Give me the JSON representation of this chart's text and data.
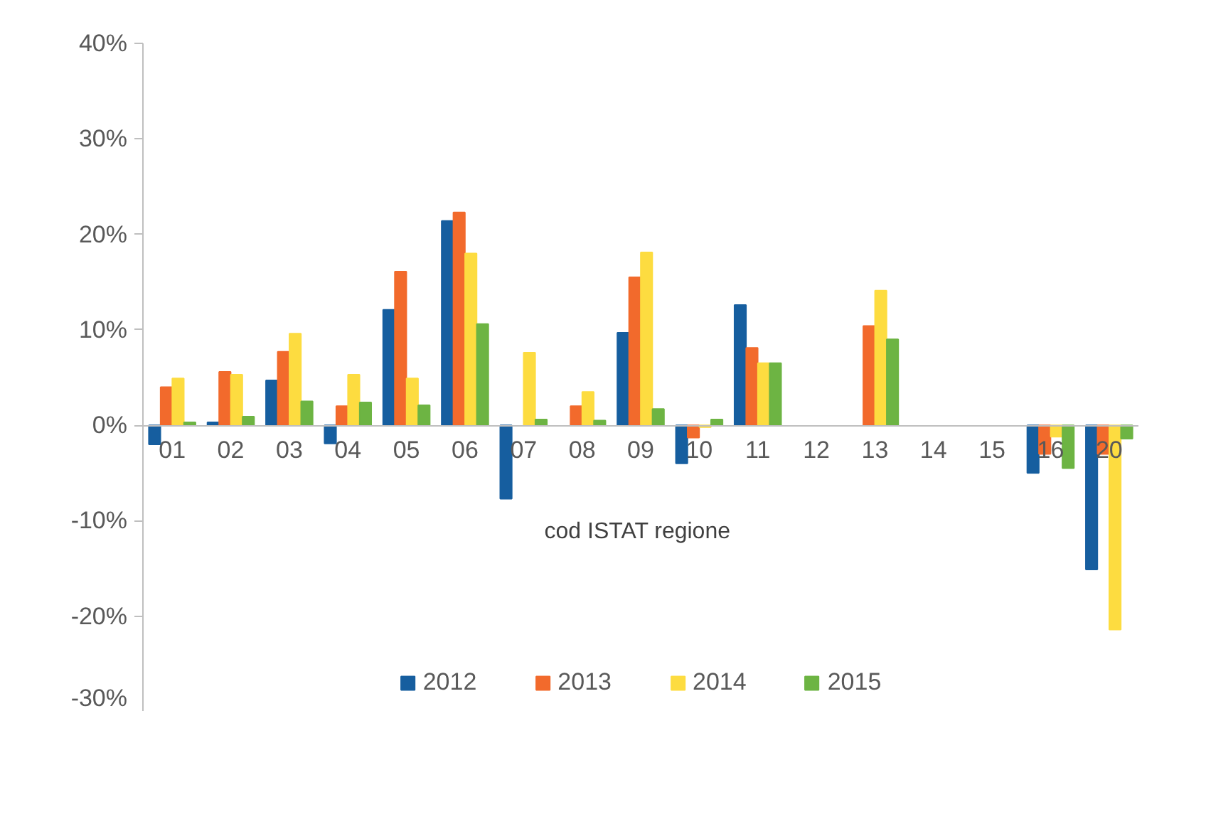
{
  "chart_data": {
    "type": "bar",
    "xlabel": "cod ISTAT  regione",
    "categories": [
      "01",
      "02",
      "03",
      "04",
      "05",
      "06",
      "07",
      "08",
      "09",
      "10",
      "11",
      "12",
      "13",
      "14",
      "15",
      "16",
      "20"
    ],
    "series": [
      {
        "name": "2012",
        "color": "#165e9f",
        "values": [
          -2.0,
          0.3,
          4.7,
          -1.9,
          12.1,
          21.4,
          -7.7,
          null,
          9.7,
          -4.0,
          12.6,
          null,
          null,
          null,
          null,
          -5.0,
          -15.1
        ]
      },
      {
        "name": "2013",
        "color": "#f26a2c",
        "values": [
          4.0,
          5.6,
          7.7,
          2.0,
          16.1,
          22.3,
          null,
          2.0,
          15.5,
          -1.3,
          8.1,
          null,
          10.4,
          null,
          null,
          -3.0,
          -3.0
        ]
      },
      {
        "name": "2014",
        "color": "#fddc40",
        "values": [
          4.9,
          5.3,
          9.6,
          5.3,
          4.9,
          18.0,
          7.6,
          3.5,
          18.1,
          -0.2,
          6.5,
          null,
          14.1,
          null,
          null,
          -1.2,
          -21.4
        ]
      },
      {
        "name": "2015",
        "color": "#6db443",
        "values": [
          0.3,
          0.9,
          2.5,
          2.4,
          2.1,
          10.6,
          0.6,
          0.5,
          1.7,
          0.6,
          6.5,
          null,
          9.0,
          null,
          null,
          -4.5,
          -1.4
        ]
      }
    ],
    "ylim": [
      -30,
      40
    ],
    "yticks": [
      {
        "value": -30,
        "label": "-30%"
      },
      {
        "value": -20,
        "label": "-20%"
      },
      {
        "value": -10,
        "label": "-10%"
      },
      {
        "value": 0,
        "label": "0%"
      },
      {
        "value": 10,
        "label": "10%"
      },
      {
        "value": 20,
        "label": "20%"
      },
      {
        "value": 30,
        "label": "30%"
      },
      {
        "value": 40,
        "label": "40%"
      }
    ],
    "grid": false,
    "legend": "bottom"
  }
}
